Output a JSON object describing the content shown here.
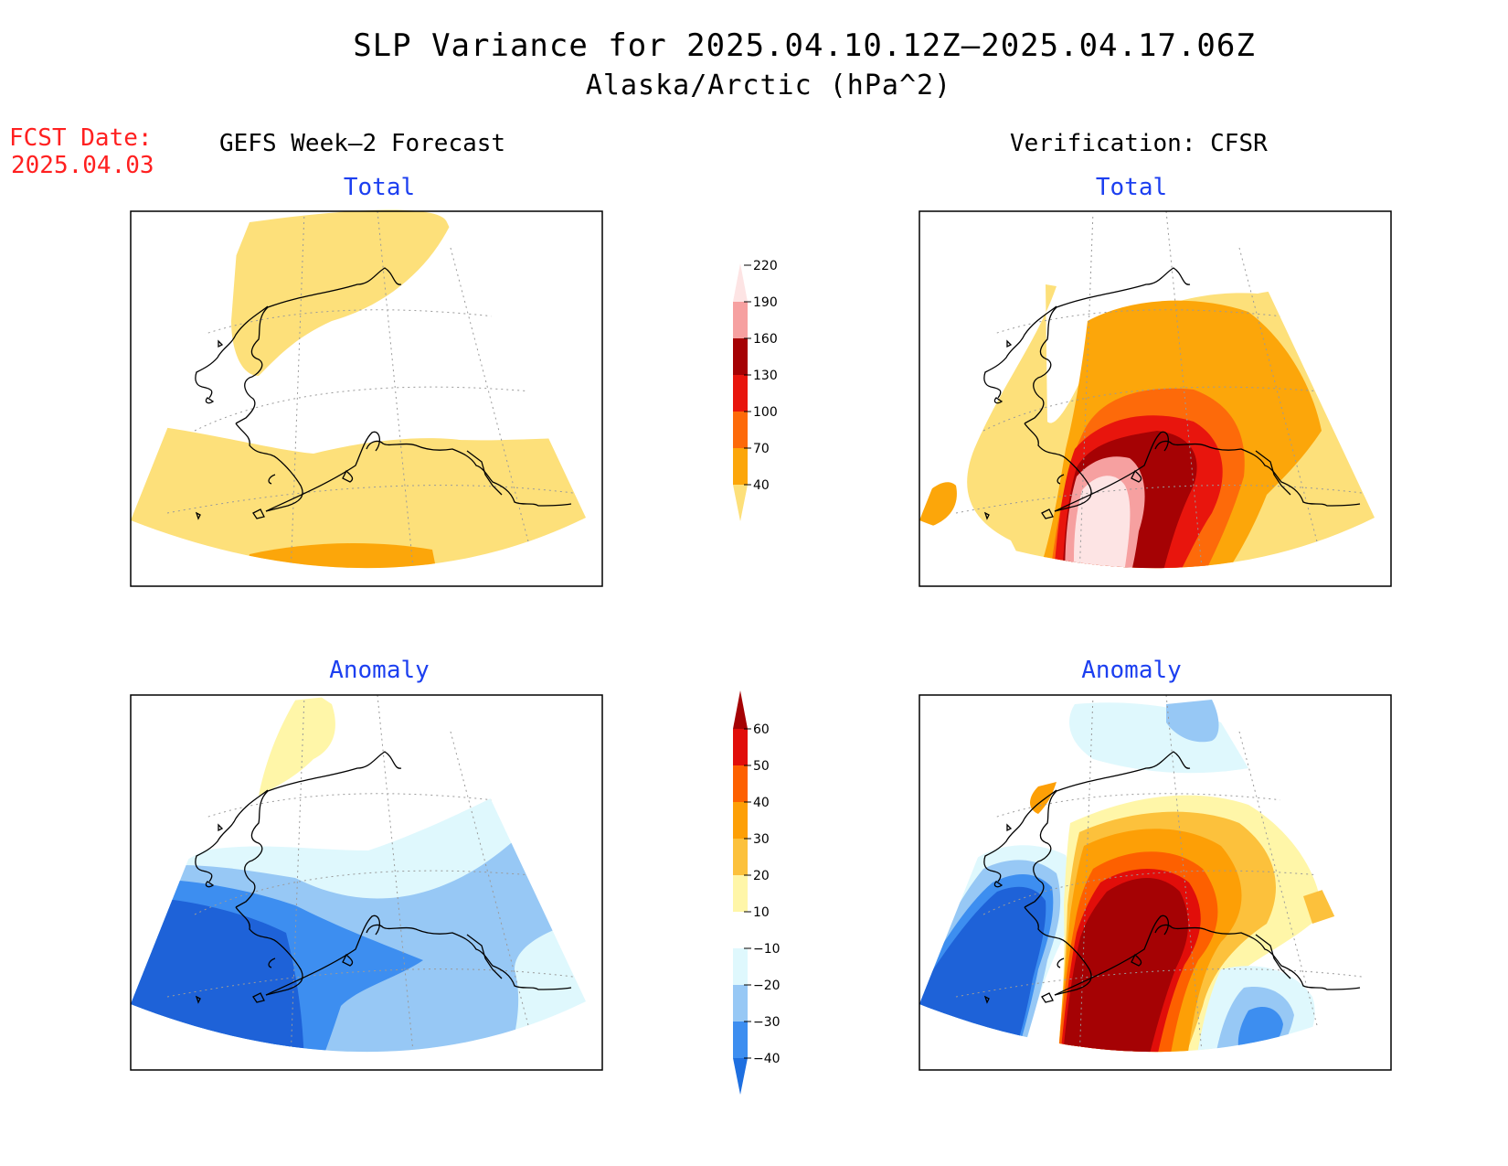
{
  "title": "SLP Variance for 2025.04.10.12Z–2025.04.17.06Z",
  "subtitle": "Alaska/Arctic (hPa^2)",
  "fcst": {
    "label": "FCST Date:",
    "date": "2025.04.03"
  },
  "columns": {
    "left": "GEFS Week–2 Forecast",
    "right": "Verification: CFSR"
  },
  "panels": [
    {
      "id": "gefs-total",
      "title": "Total"
    },
    {
      "id": "cfsr-total",
      "title": "Total"
    },
    {
      "id": "gefs-anomaly",
      "title": "Anomaly"
    },
    {
      "id": "cfsr-anomaly",
      "title": "Anomaly"
    }
  ],
  "colorbars": {
    "total": {
      "labels": [
        "40",
        "70",
        "100",
        "130",
        "160",
        "190",
        "220"
      ],
      "colors": [
        "#fde07a",
        "#fca60a",
        "#fd6a0a",
        "#e8150d",
        "#a50204",
        "#f6a0a0",
        "#fde4e4"
      ]
    },
    "anomaly": {
      "labels": [
        "−40",
        "−30",
        "−20",
        "−10",
        "10",
        "20",
        "30",
        "40",
        "50",
        "60"
      ],
      "colors": [
        "#1e6fe0",
        "#3d8ef0",
        "#97c8f5",
        "#dff8fd",
        "#ffffff",
        "#fff6a8",
        "#fcc13c",
        "#fd9f06",
        "#fd6000",
        "#e10e0a",
        "#a50204"
      ]
    }
  },
  "colors": {
    "yellow": "#fde07a",
    "orange": "#fca60a",
    "dark_orange": "#fd6a0a",
    "red": "#e8150d",
    "dark_red": "#a50204",
    "pink": "#f6a0a0",
    "light_pink": "#fde4e4",
    "blue_dark": "#1e62d8",
    "blue": "#3d8ef0",
    "blue_light": "#97c8f5",
    "cyan_light": "#dff8fd",
    "pale_yellow": "#fff6a8",
    "lt_orange": "#fcc13c"
  }
}
